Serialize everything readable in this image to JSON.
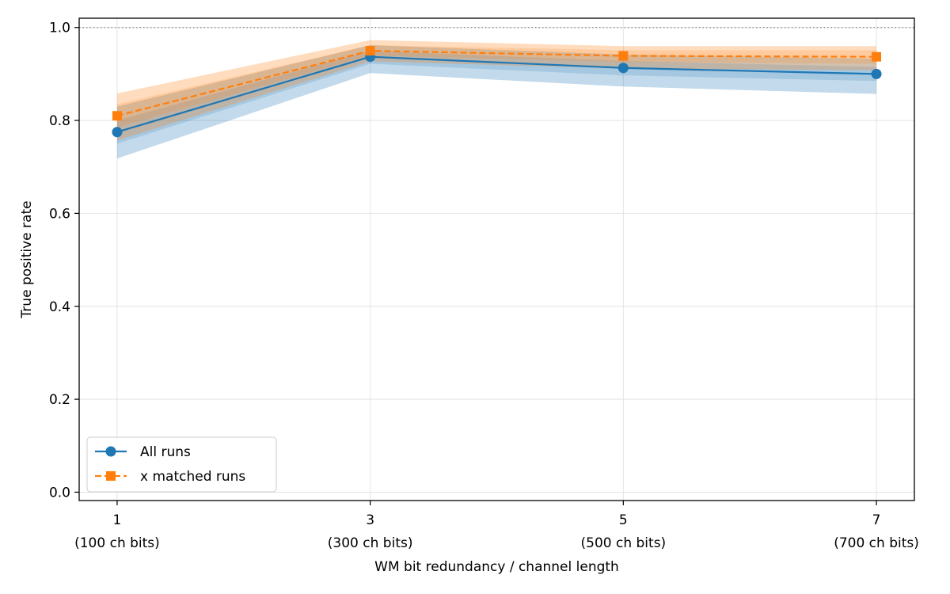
{
  "chart_data": {
    "type": "line",
    "title": "",
    "xlabel": "WM bit redundancy / channel length",
    "ylabel": "True positive rate",
    "x": [
      1,
      3,
      5,
      7
    ],
    "xticks": [
      {
        "value": 1,
        "line1": "1",
        "line2": "(100 ch bits)"
      },
      {
        "value": 3,
        "line1": "3",
        "line2": "(300 ch bits)"
      },
      {
        "value": 5,
        "line1": "5",
        "line2": "(500 ch bits)"
      },
      {
        "value": 7,
        "line1": "7",
        "line2": "(700 ch bits)"
      }
    ],
    "xlim": [
      0.7,
      7.3
    ],
    "ylim": [
      -0.018,
      1.02
    ],
    "yticks": [
      "0.0",
      "0.2",
      "0.4",
      "0.6",
      "0.8",
      "1.0"
    ],
    "grid": true,
    "reference_line": {
      "y": 1.0,
      "style": "dotted",
      "color": "#808080"
    },
    "legend_position": "lower-left",
    "series": [
      {
        "name": "All runs",
        "color": "#1f77b4",
        "marker": "circle",
        "line_style": "solid",
        "values": [
          0.775,
          0.937,
          0.913,
          0.9
        ],
        "band_outer_lower": [
          0.718,
          0.902,
          0.873,
          0.857
        ],
        "band_outer_upper": [
          0.83,
          0.962,
          0.942,
          0.933
        ],
        "band_inner_lower": [
          0.75,
          0.922,
          0.897,
          0.885
        ],
        "band_inner_upper": [
          0.8,
          0.95,
          0.928,
          0.915
        ]
      },
      {
        "name": "x matched runs",
        "color": "#ff7f0e",
        "marker": "square",
        "line_style": "dashed",
        "values": [
          0.81,
          0.95,
          0.939,
          0.937
        ],
        "band_outer_lower": [
          0.757,
          0.927,
          0.912,
          0.908
        ],
        "band_outer_upper": [
          0.858,
          0.973,
          0.96,
          0.96
        ],
        "band_inner_lower": [
          0.785,
          0.94,
          0.926,
          0.922
        ],
        "band_inner_upper": [
          0.835,
          0.962,
          0.951,
          0.951
        ]
      }
    ]
  }
}
